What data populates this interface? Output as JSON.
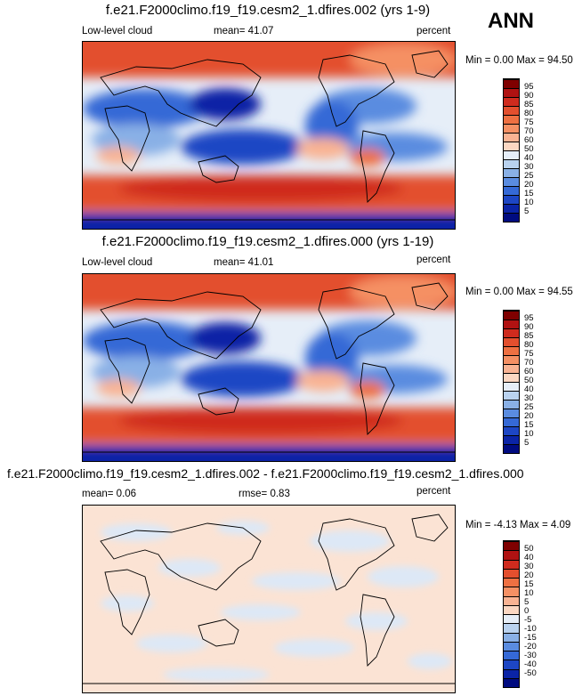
{
  "season": "ANN",
  "panels": [
    {
      "title": "f.e21.F2000climo.f19_f19.cesm2_1.dfires.002 (yrs 1-9)",
      "left_label": "Low-level cloud",
      "center_label": "mean=  41.07",
      "right_label": "percent",
      "minmax": "Min =   0.00 Max =  94.50",
      "colorbar_ticks": [
        "95",
        "90",
        "85",
        "80",
        "75",
        "70",
        "60",
        "50",
        "40",
        "30",
        "25",
        "20",
        "15",
        "10",
        "5"
      ],
      "colorbar_colors": [
        "#7f0000",
        "#b01212",
        "#cf2b1e",
        "#e34f2e",
        "#ee7042",
        "#f59064",
        "#f9b393",
        "#fbd7c2",
        "#e6eef8",
        "#b9d2ef",
        "#89b0e6",
        "#5a8ce0",
        "#3569d6",
        "#1d46c4",
        "#0b24a6",
        "#000b80"
      ]
    },
    {
      "title": "f.e21.F2000climo.f19_f19.cesm2_1.dfires.000 (yrs 1-19)",
      "left_label": "Low-level cloud",
      "center_label": "mean=  41.01",
      "right_label": "percent",
      "minmax": "Min =   0.00 Max =  94.55",
      "colorbar_ticks": [
        "95",
        "90",
        "85",
        "80",
        "75",
        "70",
        "60",
        "50",
        "40",
        "30",
        "25",
        "20",
        "15",
        "10",
        "5"
      ],
      "colorbar_colors": [
        "#7f0000",
        "#b01212",
        "#cf2b1e",
        "#e34f2e",
        "#ee7042",
        "#f59064",
        "#f9b393",
        "#fbd7c2",
        "#e6eef8",
        "#b9d2ef",
        "#89b0e6",
        "#5a8ce0",
        "#3569d6",
        "#1d46c4",
        "#0b24a6",
        "#000b80"
      ]
    },
    {
      "title": "f.e21.F2000climo.f19_f19.cesm2_1.dfires.002 - f.e21.F2000climo.f19_f19.cesm2_1.dfires.000",
      "left_label": "mean=  0.06",
      "center_label": "rmse=  0.83",
      "right_label": "percent",
      "minmax": "Min =  -4.13 Max =   4.09",
      "colorbar_ticks": [
        "50",
        "40",
        "30",
        "20",
        "15",
        "10",
        "5",
        "0",
        "-5",
        "-10",
        "-15",
        "-20",
        "-30",
        "-40",
        "-50"
      ],
      "colorbar_colors": [
        "#7f0000",
        "#b01212",
        "#cf2b1e",
        "#e34f2e",
        "#ee7042",
        "#f59064",
        "#f9b393",
        "#fbd7c2",
        "#e6eef8",
        "#b9d2ef",
        "#89b0e6",
        "#5a8ce0",
        "#3569d6",
        "#1d46c4",
        "#0b24a6",
        "#000b80"
      ]
    }
  ]
}
